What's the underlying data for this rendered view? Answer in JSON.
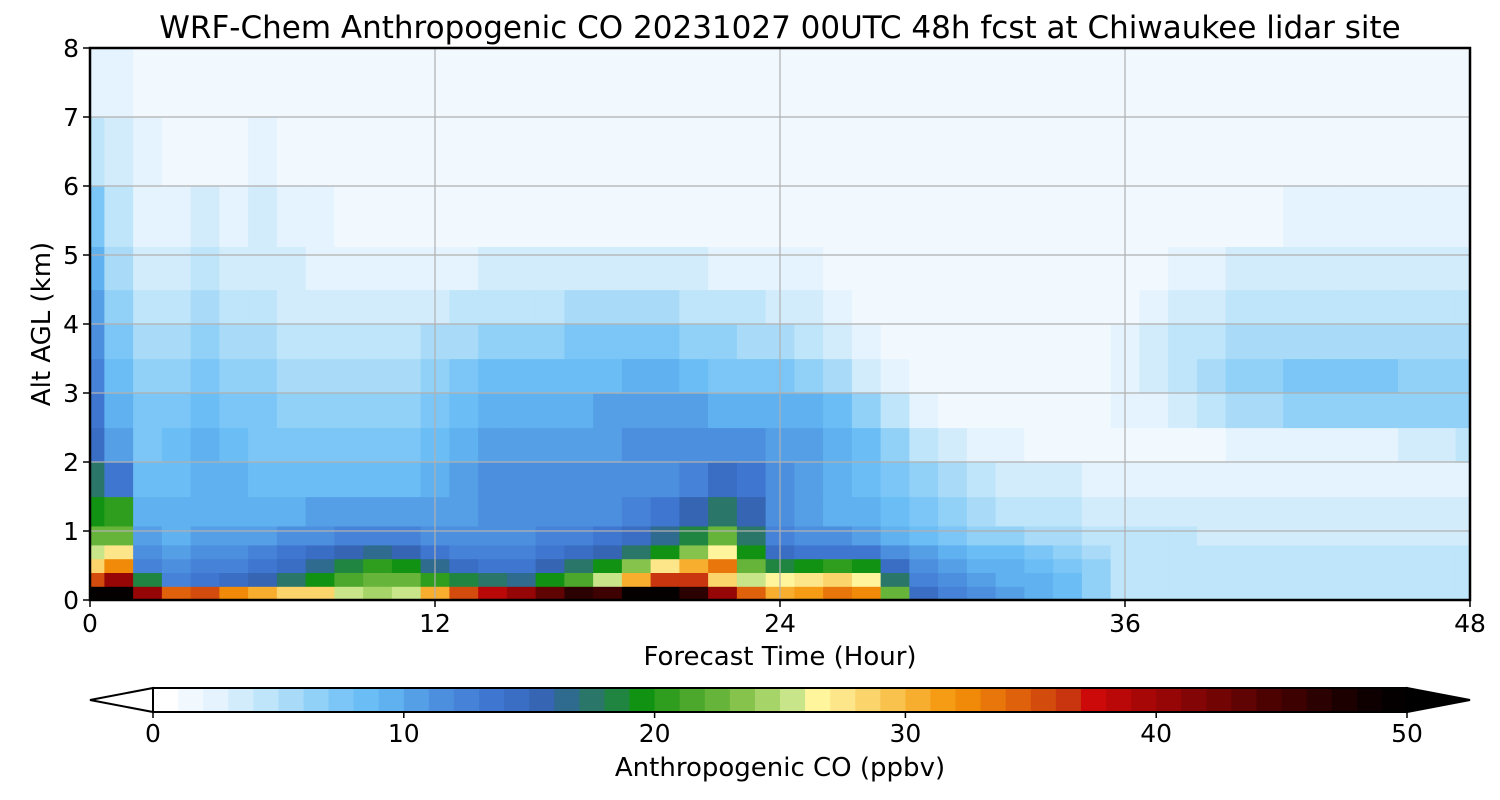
{
  "chart_data": {
    "type": "heatmap",
    "title": "WRF-Chem Anthropogenic CO  20231027 00UTC 48h fcst at Chiwaukee lidar site",
    "xlabel": "Forecast Time (Hour)",
    "ylabel": "Alt AGL (km)",
    "xlim": [
      0,
      48
    ],
    "ylim": [
      0,
      8
    ],
    "x_ticks": [
      0,
      12,
      24,
      36,
      48
    ],
    "y_ticks": [
      0,
      1,
      2,
      3,
      4,
      5,
      6,
      7,
      8
    ],
    "grid": true,
    "x_hours": [
      0,
      1,
      2,
      3,
      4,
      5,
      6,
      7,
      8,
      9,
      10,
      11,
      12,
      13,
      14,
      15,
      16,
      17,
      18,
      19,
      20,
      21,
      22,
      23,
      24,
      25,
      26,
      27,
      28,
      29,
      30,
      31,
      32,
      33,
      34,
      35,
      36,
      37,
      38,
      39,
      40,
      41,
      42,
      43,
      44,
      45,
      46,
      47,
      48
    ],
    "y_levels_km": [
      0.1,
      0.3,
      0.5,
      0.7,
      0.9,
      1.25,
      1.75,
      2.25,
      2.75,
      3.25,
      3.75,
      4.25,
      4.75,
      5.5,
      6.5,
      7.5
    ],
    "values_ppbv": [
      [
        50,
        50,
        40,
        34,
        35,
        32,
        30,
        29,
        28,
        25,
        24,
        25,
        30,
        35,
        38,
        40,
        43,
        46,
        45,
        50,
        50,
        46,
        40,
        34,
        30,
        31,
        33,
        32,
        22,
        14,
        12,
        11,
        10,
        9,
        8,
        6,
        4,
        4,
        4,
        4,
        4,
        4,
        4,
        4,
        4,
        4,
        4,
        4,
        4
      ],
      [
        35,
        40,
        18,
        12,
        13,
        14,
        15,
        17,
        19,
        21,
        22,
        22,
        20,
        18,
        17,
        16,
        19,
        21,
        25,
        30,
        36,
        36,
        28,
        25,
        26,
        27,
        28,
        26,
        17,
        12,
        11,
        10,
        9,
        9,
        8,
        6,
        4,
        4,
        4,
        4,
        4,
        4,
        4,
        4,
        4,
        4,
        4,
        4,
        4
      ],
      [
        29,
        32,
        12,
        11,
        12,
        12,
        13,
        14,
        16,
        18,
        20,
        19,
        16,
        14,
        13,
        13,
        15,
        17,
        19,
        23,
        27,
        30,
        33,
        22,
        18,
        19,
        20,
        19,
        14,
        11,
        10,
        9,
        9,
        8,
        7,
        6,
        4,
        4,
        4,
        4,
        4,
        4,
        4,
        4,
        4,
        4,
        4,
        4,
        4
      ],
      [
        25,
        27,
        11,
        10,
        11,
        11,
        12,
        13,
        14,
        15,
        16,
        15,
        13,
        12,
        12,
        12,
        13,
        14,
        15,
        17,
        19,
        23,
        26,
        19,
        14,
        13,
        13,
        13,
        11,
        10,
        9,
        8,
        8,
        7,
        6,
        5,
        4,
        4,
        4,
        4,
        4,
        4,
        4,
        4,
        4,
        4,
        4,
        4,
        4
      ],
      [
        22,
        22,
        10,
        9,
        10,
        10,
        10,
        11,
        11,
        12,
        12,
        12,
        11,
        11,
        11,
        11,
        12,
        12,
        13,
        14,
        16,
        18,
        22,
        17,
        12,
        11,
        11,
        10,
        9,
        8,
        7,
        6,
        6,
        5,
        5,
        4,
        4,
        4,
        4,
        3,
        3,
        3,
        3,
        3,
        3,
        3,
        3,
        3,
        3
      ],
      [
        19,
        20,
        9,
        9,
        9,
        9,
        9,
        9,
        10,
        10,
        10,
        10,
        10,
        10,
        11,
        11,
        11,
        11,
        11,
        12,
        13,
        15,
        17,
        15,
        11,
        10,
        9,
        9,
        8,
        7,
        6,
        5,
        4,
        4,
        4,
        3,
        3,
        3,
        3,
        3,
        3,
        3,
        3,
        3,
        3,
        3,
        3,
        3,
        3
      ],
      [
        17,
        13,
        8,
        8,
        9,
        9,
        8,
        8,
        8,
        8,
        8,
        8,
        9,
        10,
        11,
        11,
        11,
        11,
        11,
        11,
        11,
        12,
        14,
        13,
        11,
        10,
        9,
        8,
        7,
        6,
        5,
        4,
        3,
        3,
        3,
        2,
        2,
        2,
        2,
        2,
        2,
        2,
        2,
        2,
        2,
        2,
        2,
        2,
        2
      ],
      [
        14,
        10,
        7,
        8,
        9,
        8,
        7,
        7,
        7,
        7,
        7,
        7,
        8,
        9,
        10,
        10,
        10,
        10,
        10,
        11,
        11,
        11,
        11,
        11,
        10,
        10,
        9,
        8,
        6,
        4,
        3,
        2,
        2,
        1,
        1,
        1,
        1,
        1,
        1,
        1,
        2,
        2,
        2,
        2,
        2,
        2,
        3,
        3,
        4
      ],
      [
        13,
        9,
        7,
        7,
        8,
        7,
        7,
        6,
        6,
        6,
        6,
        6,
        7,
        8,
        9,
        9,
        9,
        9,
        10,
        10,
        10,
        10,
        9,
        9,
        9,
        9,
        8,
        6,
        4,
        2,
        1,
        1,
        1,
        1,
        1,
        1,
        2,
        2,
        3,
        4,
        5,
        5,
        6,
        6,
        6,
        6,
        6,
        6,
        6
      ],
      [
        12,
        8,
        6,
        6,
        7,
        6,
        6,
        5,
        5,
        5,
        5,
        5,
        6,
        7,
        8,
        8,
        8,
        8,
        8,
        9,
        9,
        8,
        7,
        7,
        7,
        6,
        5,
        3,
        2,
        1,
        1,
        1,
        1,
        1,
        1,
        1,
        2,
        3,
        4,
        5,
        6,
        6,
        7,
        7,
        7,
        7,
        6,
        6,
        6
      ],
      [
        11,
        7,
        5,
        5,
        6,
        5,
        5,
        4,
        4,
        4,
        4,
        4,
        5,
        5,
        6,
        6,
        6,
        7,
        7,
        7,
        7,
        6,
        6,
        5,
        5,
        4,
        3,
        2,
        1,
        1,
        1,
        1,
        1,
        1,
        1,
        1,
        2,
        3,
        4,
        4,
        5,
        5,
        5,
        5,
        5,
        5,
        5,
        5,
        5
      ],
      [
        10,
        6,
        4,
        4,
        5,
        4,
        4,
        3,
        3,
        3,
        3,
        3,
        3,
        4,
        4,
        4,
        4,
        5,
        5,
        5,
        5,
        4,
        4,
        4,
        3,
        3,
        2,
        1,
        1,
        1,
        1,
        1,
        1,
        1,
        1,
        1,
        1,
        2,
        3,
        3,
        4,
        4,
        4,
        4,
        4,
        4,
        4,
        4,
        4
      ],
      [
        9,
        5,
        3,
        3,
        4,
        3,
        3,
        3,
        2,
        2,
        2,
        2,
        2,
        2,
        3,
        3,
        3,
        3,
        3,
        3,
        3,
        3,
        2,
        2,
        2,
        2,
        1,
        1,
        1,
        1,
        1,
        1,
        1,
        1,
        1,
        1,
        1,
        1,
        2,
        2,
        3,
        3,
        3,
        3,
        3,
        3,
        3,
        3,
        3
      ],
      [
        7,
        4,
        2,
        2,
        3,
        2,
        3,
        2,
        2,
        1,
        1,
        1,
        1,
        1,
        1,
        1,
        1,
        1,
        1,
        1,
        1,
        1,
        1,
        1,
        1,
        1,
        1,
        1,
        1,
        1,
        1,
        1,
        1,
        1,
        1,
        1,
        1,
        1,
        1,
        1,
        1,
        1,
        2,
        2,
        2,
        2,
        2,
        2,
        2
      ],
      [
        4,
        3,
        2,
        1,
        1,
        1,
        2,
        1,
        1,
        1,
        1,
        1,
        1,
        1,
        1,
        1,
        1,
        1,
        1,
        1,
        1,
        1,
        1,
        1,
        1,
        1,
        1,
        1,
        1,
        1,
        1,
        1,
        1,
        1,
        1,
        1,
        1,
        1,
        1,
        1,
        1,
        1,
        1,
        1,
        1,
        1,
        1,
        1,
        1
      ],
      [
        2,
        2,
        1,
        1,
        1,
        1,
        1,
        1,
        1,
        1,
        1,
        1,
        1,
        1,
        1,
        1,
        1,
        1,
        1,
        1,
        1,
        1,
        1,
        1,
        1,
        1,
        1,
        1,
        1,
        1,
        1,
        1,
        1,
        1,
        1,
        1,
        1,
        1,
        1,
        1,
        1,
        1,
        1,
        1,
        1,
        1,
        1,
        1,
        1
      ]
    ],
    "colorbar": {
      "label": "Anthropogenic CO  (ppbv)",
      "min": 0,
      "max": 50,
      "ticks": [
        0,
        10,
        20,
        30,
        40,
        50
      ],
      "extend": "both",
      "colors": [
        "#ffffff",
        "#f2f9fe",
        "#e4f3fd",
        "#d2ecfb",
        "#bfe5fa",
        "#a9dbf8",
        "#92d1f7",
        "#7bc6f6",
        "#6bbef5",
        "#5fb2ef",
        "#559fe6",
        "#4d8fdf",
        "#4683d8",
        "#3f77d0",
        "#3a6dc4",
        "#3565b3",
        "#2f6a8f",
        "#2a7668",
        "#1f8540",
        "#129212",
        "#2f9e1f",
        "#4ba82c",
        "#67b43a",
        "#86c34c",
        "#a6d468",
        "#c8e58a",
        "#fff59d",
        "#fde68a",
        "#fbd46b",
        "#f9c24d",
        "#f7ae2f",
        "#f59b14",
        "#f08a08",
        "#e8760b",
        "#df610c",
        "#d44c0d",
        "#c9350e",
        "#cc0a0a",
        "#ba0808",
        "#a80707",
        "#960606",
        "#840505",
        "#720404",
        "#600303",
        "#4d0202",
        "#3d0101",
        "#2c0101",
        "#1c0000",
        "#0e0000",
        "#040000"
      ]
    }
  }
}
